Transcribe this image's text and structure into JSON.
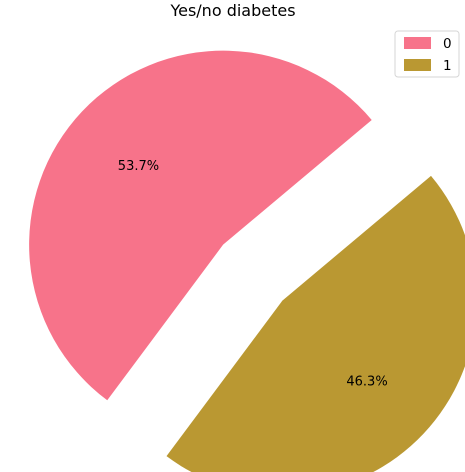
{
  "chart_data": {
    "type": "pie",
    "title": "Yes/no diabetes",
    "slices": [
      {
        "label": "0",
        "value": 53.7,
        "pct_label": "53.7%",
        "color": "#f7738a"
      },
      {
        "label": "1",
        "value": 46.3,
        "pct_label": "46.3%",
        "color": "#ba9832"
      }
    ],
    "legend_position": "top-right",
    "exploded": true
  }
}
